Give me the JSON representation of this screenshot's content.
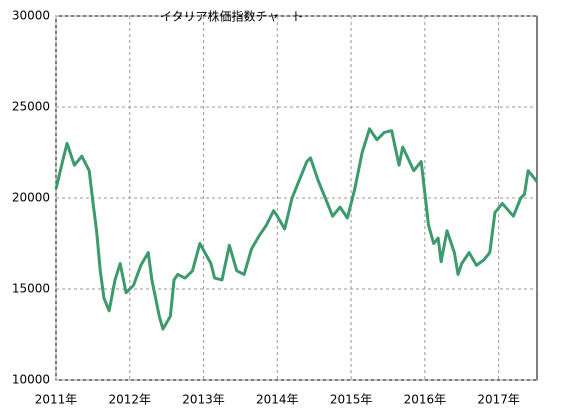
{
  "chart_data": {
    "type": "line",
    "title": "イタリア株価指数チャート",
    "x": [
      2011.0,
      2011.1,
      2011.15,
      2011.25,
      2011.35,
      2011.45,
      2011.5,
      2011.55,
      2011.6,
      2011.65,
      2011.72,
      2011.8,
      2011.87,
      2011.95,
      2012.05,
      2012.15,
      2012.25,
      2012.3,
      2012.4,
      2012.45,
      2012.55,
      2012.6,
      2012.65,
      2012.75,
      2012.85,
      2012.95,
      2013.1,
      2013.15,
      2013.25,
      2013.35,
      2013.45,
      2013.55,
      2013.65,
      2013.75,
      2013.85,
      2013.95,
      2014.0,
      2014.1,
      2014.2,
      2014.35,
      2014.4,
      2014.45,
      2014.55,
      2014.65,
      2014.75,
      2014.85,
      2014.95,
      2015.05,
      2015.15,
      2015.25,
      2015.35,
      2015.45,
      2015.55,
      2015.65,
      2015.7,
      2015.85,
      2015.95,
      2016.05,
      2016.12,
      2016.18,
      2016.22,
      2016.3,
      2016.4,
      2016.45,
      2016.5,
      2016.6,
      2016.7,
      2016.8,
      2016.88,
      2016.95,
      2017.05,
      2017.2,
      2017.3,
      2017.35,
      2017.4,
      2017.52
    ],
    "values": [
      20500,
      22200,
      23000,
      21800,
      22300,
      21500,
      19800,
      18200,
      16000,
      14500,
      13800,
      15500,
      16400,
      14800,
      15200,
      16300,
      17000,
      15500,
      13500,
      12800,
      13500,
      15500,
      15800,
      15600,
      16000,
      17500,
      16400,
      15600,
      15500,
      17400,
      16000,
      15800,
      17200,
      17900,
      18500,
      19300,
      19000,
      18300,
      20000,
      21500,
      22000,
      22200,
      21000,
      20000,
      19000,
      19500,
      18900,
      20500,
      22500,
      23800,
      23200,
      23600,
      23700,
      21800,
      22800,
      21500,
      22000,
      18500,
      17500,
      17800,
      16500,
      18200,
      17000,
      15800,
      16400,
      17000,
      16300,
      16600,
      17000,
      19200,
      19700,
      19000,
      20000,
      20200,
      21500,
      20900
    ],
    "color": "#3c9a6c",
    "xlim": [
      2011,
      2017.52
    ],
    "xticks": [
      {
        "value": 2011,
        "label": "2011年"
      },
      {
        "value": 2012,
        "label": "2012年"
      },
      {
        "value": 2013,
        "label": "2013年"
      },
      {
        "value": 2014,
        "label": "2014年"
      },
      {
        "value": 2015,
        "label": "2015年"
      },
      {
        "value": 2016,
        "label": "2016年"
      },
      {
        "value": 2017,
        "label": "2017年"
      }
    ],
    "ylim": [
      10000,
      30000
    ],
    "yticks": [
      10000,
      15000,
      20000,
      25000,
      30000
    ],
    "grid": true
  }
}
